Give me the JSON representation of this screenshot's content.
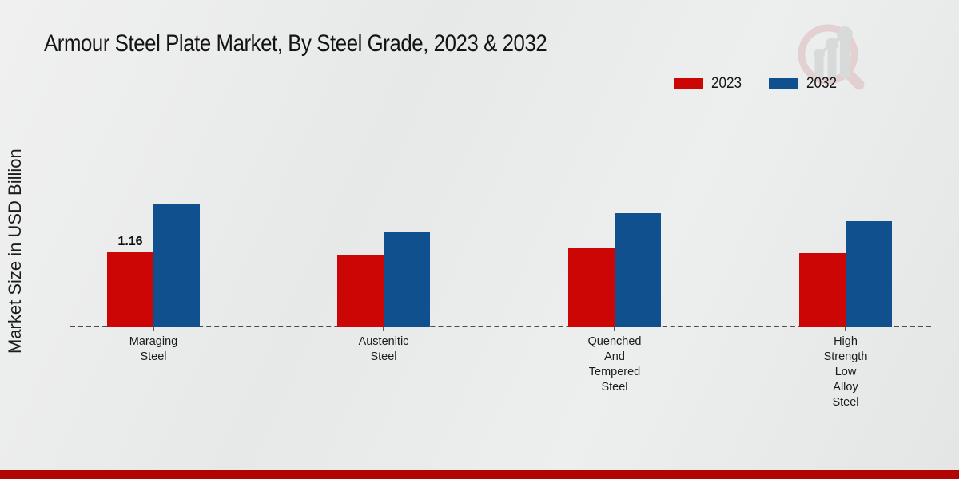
{
  "page": {
    "title": "Armour Steel Plate Market, By Steel Grade, 2023 & 2032",
    "ylabel": "Market Size in USD Billion"
  },
  "legend": {
    "items": [
      {
        "label": "2023",
        "color": "#cc0505"
      },
      {
        "label": "2032",
        "color": "#11508f"
      }
    ]
  },
  "chart_data": {
    "type": "bar",
    "title": "Armour Steel Plate Market, By Steel Grade, 2023 & 2032",
    "xlabel": "",
    "ylabel": "Market Size in USD Billion",
    "ylim": [
      0,
      2.5
    ],
    "grid": false,
    "legend_position": "top-right",
    "categories": [
      "Maraging Steel",
      "Austenitic Steel",
      "Quenched And Tempered Steel",
      "High Strength Low Alloy Steel"
    ],
    "series": [
      {
        "name": "2023",
        "color": "#cc0505",
        "values": [
          1.16,
          1.11,
          1.22,
          1.15
        ]
      },
      {
        "name": "2032",
        "color": "#11508f",
        "values": [
          1.92,
          1.49,
          1.77,
          1.65
        ]
      }
    ],
    "data_labels": [
      {
        "series": "2023",
        "category": "Maraging Steel",
        "text": "1.16"
      }
    ]
  },
  "colors": {
    "series_2023": "#cc0505",
    "series_2032": "#11508f",
    "footer_band": "#b30404",
    "axis_line": "#4c4c4c",
    "background": "#e9eaea"
  }
}
